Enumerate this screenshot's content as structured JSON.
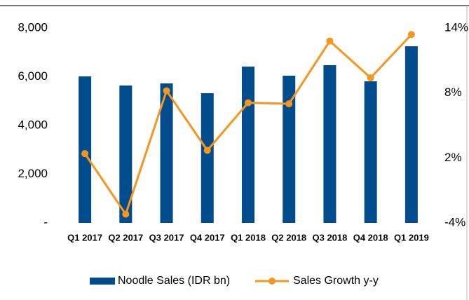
{
  "chart_data": {
    "type": "bar_line",
    "categories": [
      "Q1 2017",
      "Q2 2017",
      "Q3 2017",
      "Q4 2017",
      "Q1 2018",
      "Q2 2018",
      "Q3 2018",
      "Q4 2018",
      "Q1 2019"
    ],
    "series": [
      {
        "name": "Noodle Sales (IDR bn)",
        "color": "#004c8c",
        "type": "bar",
        "values": [
          6015,
          5640,
          5727,
          5324,
          6417,
          6043,
          6475,
          5813,
          7252
        ]
      },
      {
        "name": "Sales Growth y-y",
        "color": "#f7961e",
        "type": "line",
        "axis": "y2",
        "values": [
          2.4,
          -3.2,
          8.2,
          2.7,
          7.1,
          7.0,
          12.8,
          9.4,
          13.4
        ]
      }
    ],
    "ylim": [
      0,
      8000
    ],
    "yticks": [
      {
        "value": 0,
        "label": "-"
      },
      {
        "value": 2000,
        "label": "2,000"
      },
      {
        "value": 4000,
        "label": "4,000"
      },
      {
        "value": 6000,
        "label": "6,000"
      },
      {
        "value": 8000,
        "label": "8,000"
      }
    ],
    "y2lim": [
      -4,
      14
    ],
    "y2ticks": [
      {
        "value": -4,
        "label": "-4%"
      },
      {
        "value": 2,
        "label": "2%"
      },
      {
        "value": 8,
        "label": "8%"
      },
      {
        "value": 14,
        "label": "14%"
      }
    ],
    "legend": "bottom"
  }
}
